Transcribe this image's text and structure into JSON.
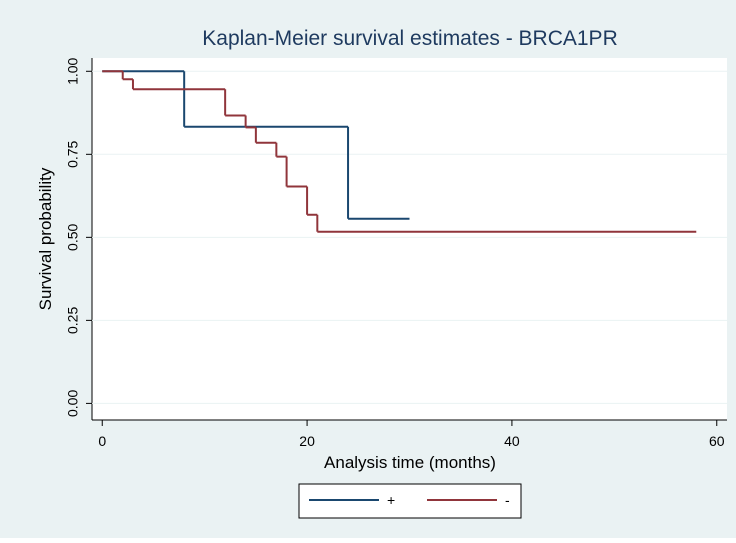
{
  "chart_data": {
    "type": "step",
    "title": "Kaplan-Meier survival estimates - BRCA1PR",
    "xlabel": "Analysis time (months)",
    "ylabel": "Survival probability",
    "xlim": [
      -1,
      61
    ],
    "ylim": [
      -0.05,
      1.04
    ],
    "xticks": [
      0,
      20,
      40,
      60
    ],
    "yticks": [
      {
        "value": 0,
        "label": "0.00"
      },
      {
        "value": 0.25,
        "label": "0.25"
      },
      {
        "value": 0.5,
        "label": "0.50"
      },
      {
        "value": 0.75,
        "label": "0.75"
      },
      {
        "value": 1,
        "label": "1.00"
      }
    ],
    "grid": true,
    "legend": "bottom",
    "series": [
      {
        "name": "+",
        "color": "#1a476f",
        "x": [
          0,
          8,
          24,
          30
        ],
        "values": [
          1,
          0.833,
          0.556,
          0.556
        ]
      },
      {
        "name": "-",
        "color": "#90353b",
        "x": [
          0,
          2,
          3,
          12,
          14,
          15,
          17,
          18,
          20,
          21,
          58
        ],
        "values": [
          1,
          0.976,
          0.946,
          0.867,
          0.831,
          0.785,
          0.743,
          0.653,
          0.568,
          0.517,
          0.517
        ]
      }
    ]
  }
}
